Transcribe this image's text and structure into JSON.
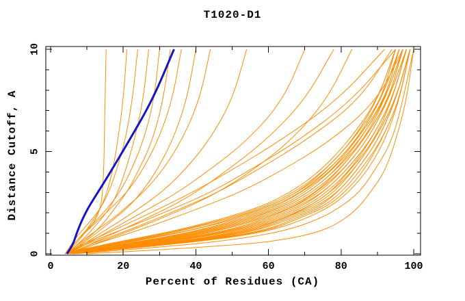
{
  "title": "T1020-D1",
  "axes": {
    "x": {
      "label": "Percent of Residues (CA)",
      "min": 0,
      "max": 100,
      "major_ticks": [
        0,
        20,
        40,
        60,
        80,
        100
      ],
      "major_tick_labels": [
        "0",
        "20",
        "40",
        "60",
        "80",
        "100"
      ],
      "minor_ticks": [
        10,
        30,
        50,
        70,
        90
      ]
    },
    "y": {
      "label": "Distance Cutoff, A",
      "min": 0,
      "max": 10,
      "major_ticks": [
        0,
        5,
        10
      ],
      "major_tick_labels": [
        "0",
        "5",
        "10"
      ],
      "minor_ticks": [
        1,
        2,
        3,
        4,
        6,
        7,
        8,
        9
      ]
    }
  },
  "colors": {
    "model_curve": "#FF8C00",
    "highlight_curve": "#1414CD",
    "axis": "#000000",
    "background": "#FFFFFF"
  },
  "chart_data": {
    "type": "line",
    "title": "T1020-D1",
    "xlabel": "Percent of Residues (CA)",
    "ylabel": "Distance Cutoff, A",
    "xlim": [
      0,
      100
    ],
    "ylim": [
      0,
      10
    ],
    "grid": false,
    "legend": false,
    "cutoffs": [
      0,
      0.4,
      0.8,
      1.2,
      1.7,
      2.3,
      3,
      4,
      5.5,
      7.5,
      10
    ],
    "orange_curves": [
      [
        4,
        13,
        25,
        36,
        47,
        58,
        66,
        74,
        82,
        90,
        95
      ],
      [
        4,
        14,
        26,
        37,
        48,
        59,
        67,
        75,
        83,
        90,
        95
      ],
      [
        4,
        15,
        27,
        38,
        49,
        60,
        68,
        75,
        83,
        91,
        96
      ],
      [
        5,
        15,
        28,
        40,
        50,
        60,
        68,
        76,
        84,
        91,
        95
      ],
      [
        4,
        16,
        29,
        40,
        51,
        61,
        69,
        76,
        84,
        91,
        96
      ],
      [
        5,
        17,
        31,
        42,
        52,
        62,
        69,
        77,
        84,
        92,
        96
      ],
      [
        5,
        17,
        32,
        43,
        53,
        63,
        70,
        77,
        85,
        92,
        97
      ],
      [
        5,
        18,
        33,
        44,
        54,
        64,
        71,
        78,
        85,
        92,
        96
      ],
      [
        5,
        19,
        34,
        45,
        55,
        64,
        71,
        78,
        86,
        92,
        97
      ],
      [
        5,
        20,
        35,
        46,
        56,
        65,
        72,
        79,
        86,
        93,
        97
      ],
      [
        5,
        20,
        36,
        47,
        57,
        66,
        73,
        79,
        86,
        93,
        98
      ],
      [
        5,
        21,
        37,
        48,
        58,
        67,
        73,
        80,
        87,
        93,
        97
      ],
      [
        6,
        22,
        38,
        50,
        59,
        67,
        74,
        80,
        87,
        93,
        98
      ],
      [
        6,
        23,
        39,
        51,
        60,
        68,
        75,
        81,
        88,
        94,
        98
      ],
      [
        6,
        23,
        40,
        52,
        61,
        69,
        75,
        81,
        88,
        94,
        98
      ],
      [
        6,
        24,
        41,
        53,
        62,
        70,
        76,
        82,
        88,
        94,
        98
      ],
      [
        6,
        25,
        43,
        54,
        63,
        71,
        77,
        82,
        89,
        94,
        98
      ],
      [
        6,
        26,
        44,
        55,
        64,
        71,
        77,
        83,
        89,
        95,
        99
      ],
      [
        6,
        26,
        45,
        56,
        64,
        72,
        78,
        83,
        89,
        95,
        99
      ],
      [
        6,
        27,
        46,
        57,
        65,
        73,
        79,
        84,
        90,
        95,
        99
      ],
      [
        6,
        28,
        47,
        58,
        66,
        74,
        79,
        84,
        90,
        95,
        99
      ],
      [
        6,
        29,
        48,
        60,
        67,
        75,
        80,
        85,
        91,
        96,
        99
      ],
      [
        6,
        29,
        49,
        61,
        68,
        76,
        81,
        86,
        91,
        96,
        99
      ],
      [
        6,
        30,
        50,
        62,
        70,
        77,
        82,
        87,
        92,
        96,
        99
      ],
      [
        4,
        8,
        13,
        18,
        24,
        31,
        39,
        49,
        63,
        79,
        92
      ],
      [
        5,
        10,
        16,
        22,
        29,
        37,
        46,
        56,
        70,
        85,
        94
      ],
      [
        4.5,
        9,
        14,
        20,
        27,
        35,
        44,
        54,
        68,
        83,
        95
      ],
      [
        5,
        11,
        18,
        25,
        33,
        42,
        52,
        63,
        77,
        90,
        97
      ],
      [
        10,
        52,
        68,
        76,
        81,
        85,
        88,
        92,
        95,
        98,
        100
      ],
      [
        7,
        36,
        55,
        66,
        74,
        80,
        85,
        89,
        94,
        97,
        100
      ],
      [
        5,
        9,
        13,
        17,
        22,
        28,
        35,
        43,
        54,
        64,
        70
      ],
      [
        5.5,
        10,
        15,
        20,
        26,
        33,
        40,
        48,
        59,
        70,
        78
      ],
      [
        6,
        11,
        17,
        23,
        30,
        38,
        46,
        55,
        66,
        76,
        83
      ],
      [
        4,
        6,
        8,
        10.5,
        12.5,
        13.8,
        14.3,
        14.6,
        14.8,
        15,
        15.3
      ],
      [
        4.5,
        6.5,
        8.5,
        10,
        12,
        14,
        15.5,
        17,
        18.5,
        20,
        21
      ],
      [
        4,
        5.5,
        7,
        9,
        11.5,
        14,
        16,
        18,
        20.5,
        22.5,
        24
      ],
      [
        5,
        7,
        9.5,
        11.5,
        14,
        16.5,
        18.5,
        20.5,
        23,
        25.5,
        27
      ],
      [
        4,
        6,
        8,
        10,
        13,
        16,
        19,
        22,
        25.5,
        28.5,
        30
      ],
      [
        5,
        7.5,
        10.5,
        13,
        15.5,
        18,
        21,
        24,
        28,
        31,
        33
      ],
      [
        4.5,
        6,
        8,
        10.5,
        13.5,
        17,
        21,
        25,
        29.5,
        33.5,
        36
      ],
      [
        5,
        8,
        11,
        14,
        17.5,
        21.5,
        25,
        29,
        33.5,
        37.5,
        40
      ],
      [
        4.5,
        7,
        10,
        13,
        17,
        21,
        25.5,
        30.5,
        36,
        41,
        44
      ],
      [
        5,
        8.5,
        12,
        15.5,
        20,
        25,
        30.5,
        36.5,
        43.5,
        50,
        54
      ]
    ],
    "blue_curve": [
      4.5,
      6,
      6.8,
      7.6,
      8.8,
      10.5,
      13,
      16.5,
      21.5,
      28,
      34
    ]
  }
}
